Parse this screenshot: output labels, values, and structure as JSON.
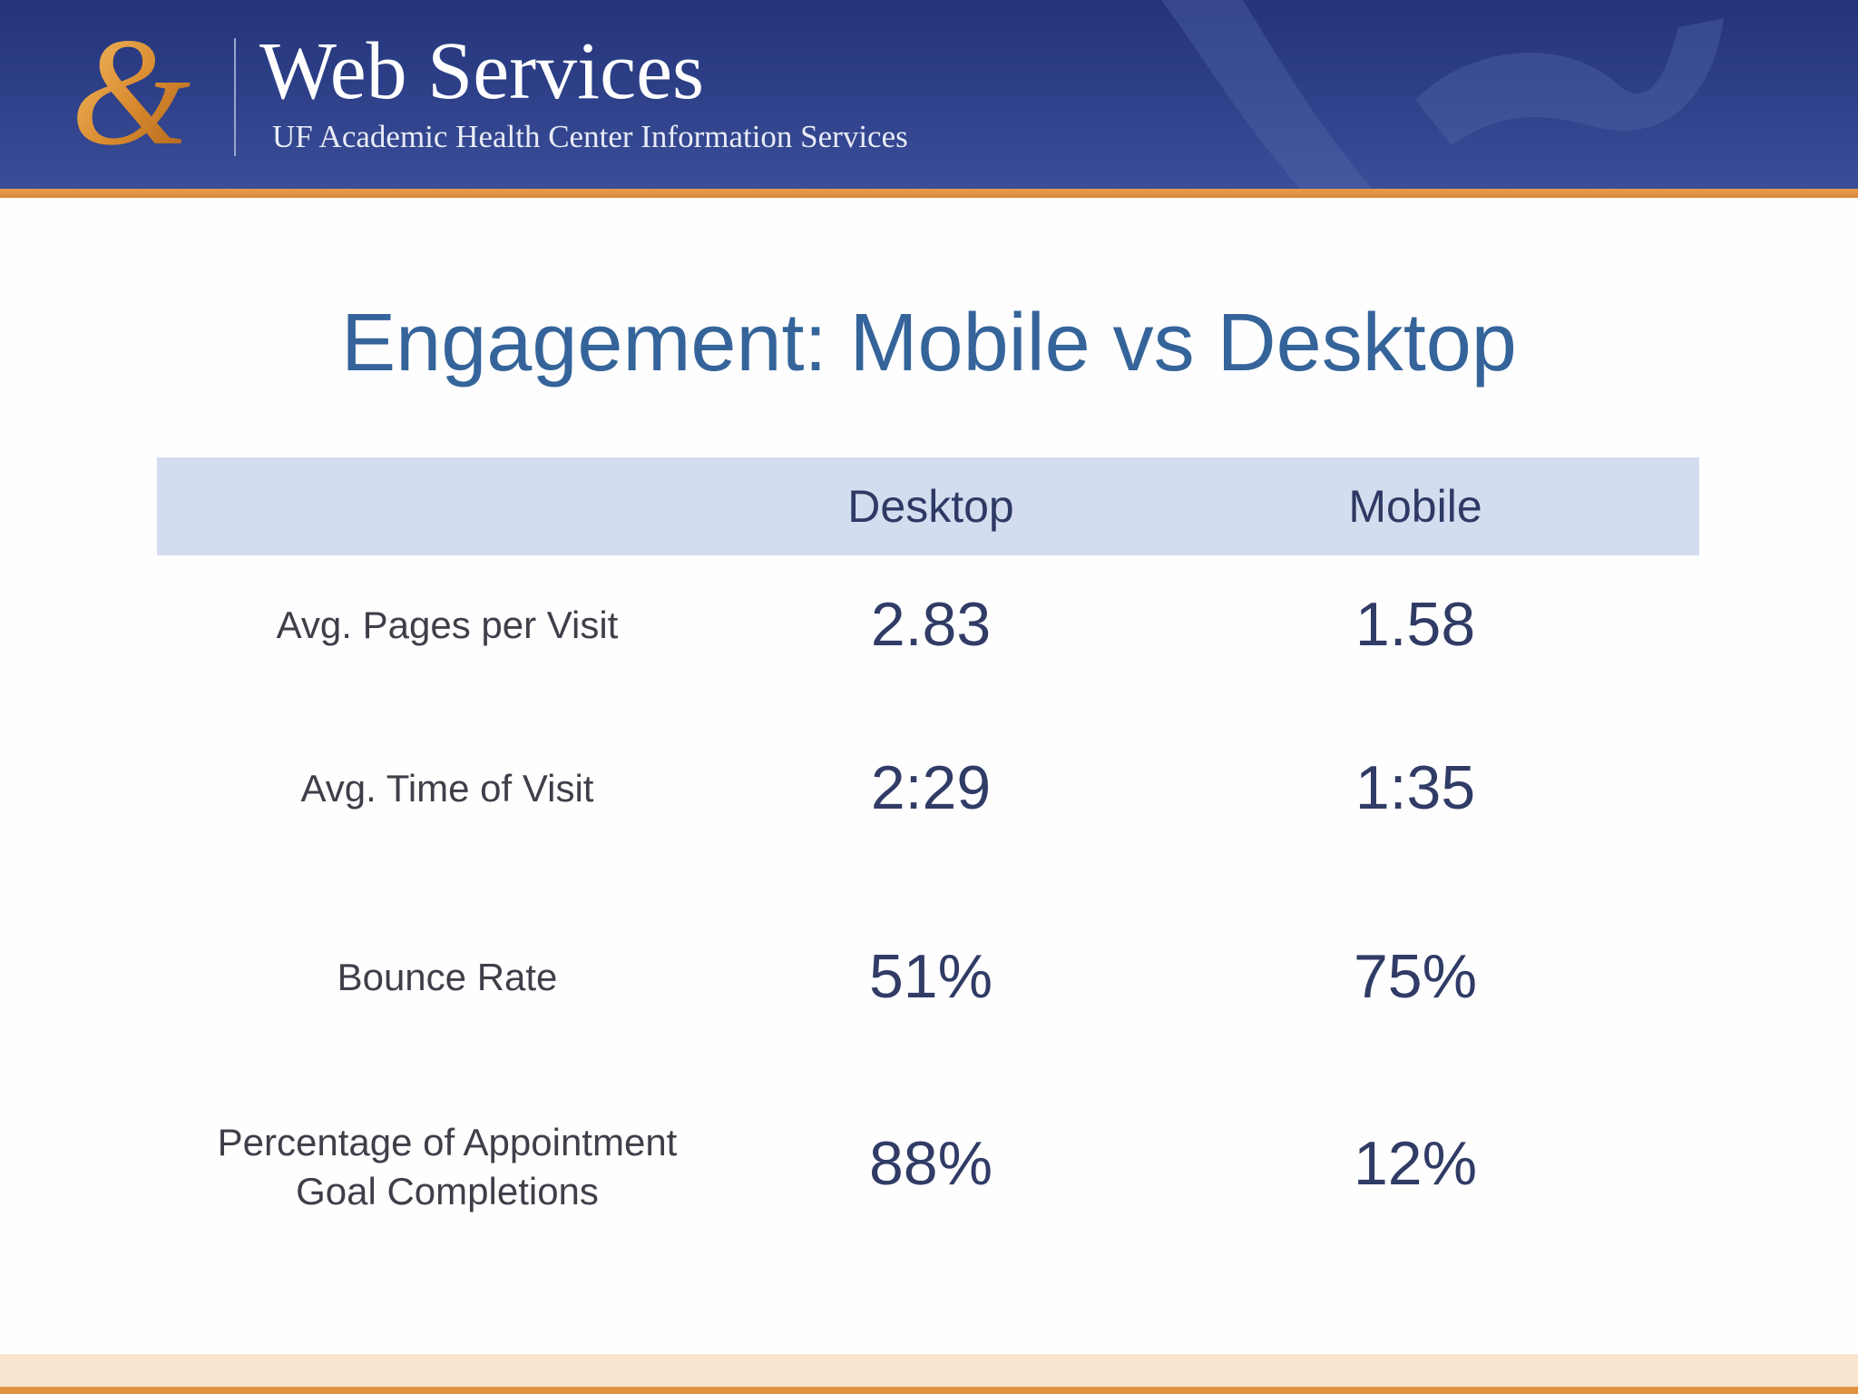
{
  "header": {
    "brand_title": "Web Services",
    "brand_subtitle": "UF Academic Health Center Information Services",
    "logo_icon": "ampersand-logo-icon",
    "colors": {
      "banner": "#2d3f87",
      "accent": "#e0923f",
      "logo": "#d98a2e"
    }
  },
  "title": "Engagement: Mobile vs Desktop",
  "table": {
    "columns": [
      "Desktop",
      "Mobile"
    ],
    "rows": [
      {
        "label": "Avg. Pages per Visit",
        "desktop": "2.83",
        "mobile": "1.58"
      },
      {
        "label": "Avg. Time of Visit",
        "desktop": "2:29",
        "mobile": "1:35"
      },
      {
        "label": "Bounce Rate",
        "desktop": "51%",
        "mobile": "75%"
      },
      {
        "label": "Percentage of Appointment Goal Completions",
        "desktop": "88%",
        "mobile": "12%"
      }
    ],
    "colors": {
      "header_bg": "#d3ddef",
      "title": "#35649a",
      "values": "#303c66"
    }
  }
}
